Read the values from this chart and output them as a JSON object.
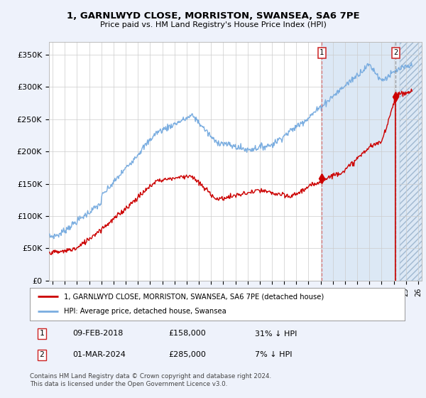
{
  "title_line1": "1, GARNLWYD CLOSE, MORRISTON, SWANSEA, SA6 7PE",
  "title_line2": "Price paid vs. HM Land Registry's House Price Index (HPI)",
  "ylabel_ticks": [
    "£0",
    "£50K",
    "£100K",
    "£150K",
    "£200K",
    "£250K",
    "£300K",
    "£350K"
  ],
  "ytick_values": [
    0,
    50000,
    100000,
    150000,
    200000,
    250000,
    300000,
    350000
  ],
  "ylim": [
    0,
    370000
  ],
  "hpi_color": "#7aade0",
  "price_color": "#cc0000",
  "shade_color": "#dce8f5",
  "point1_x": 2018.1,
  "point1_y": 158000,
  "point2_x": 2024.17,
  "point2_y": 285000,
  "point1_label": "1",
  "point2_label": "2",
  "shade_start": 2018.1,
  "hatch_start": 2024.5,
  "xlim_start": 1995.7,
  "xlim_end": 2026.3,
  "legend_line1": "1, GARNLWYD CLOSE, MORRISTON, SWANSEA, SA6 7PE (detached house)",
  "legend_line2": "HPI: Average price, detached house, Swansea",
  "table_row1": [
    "1",
    "09-FEB-2018",
    "£158,000",
    "31% ↓ HPI"
  ],
  "table_row2": [
    "2",
    "01-MAR-2024",
    "£285,000",
    "7% ↓ HPI"
  ],
  "footnote": "Contains HM Land Registry data © Crown copyright and database right 2024.\nThis data is licensed under the Open Government Licence v3.0.",
  "bg_color": "#eef2fb",
  "plot_bg": "#ffffff"
}
